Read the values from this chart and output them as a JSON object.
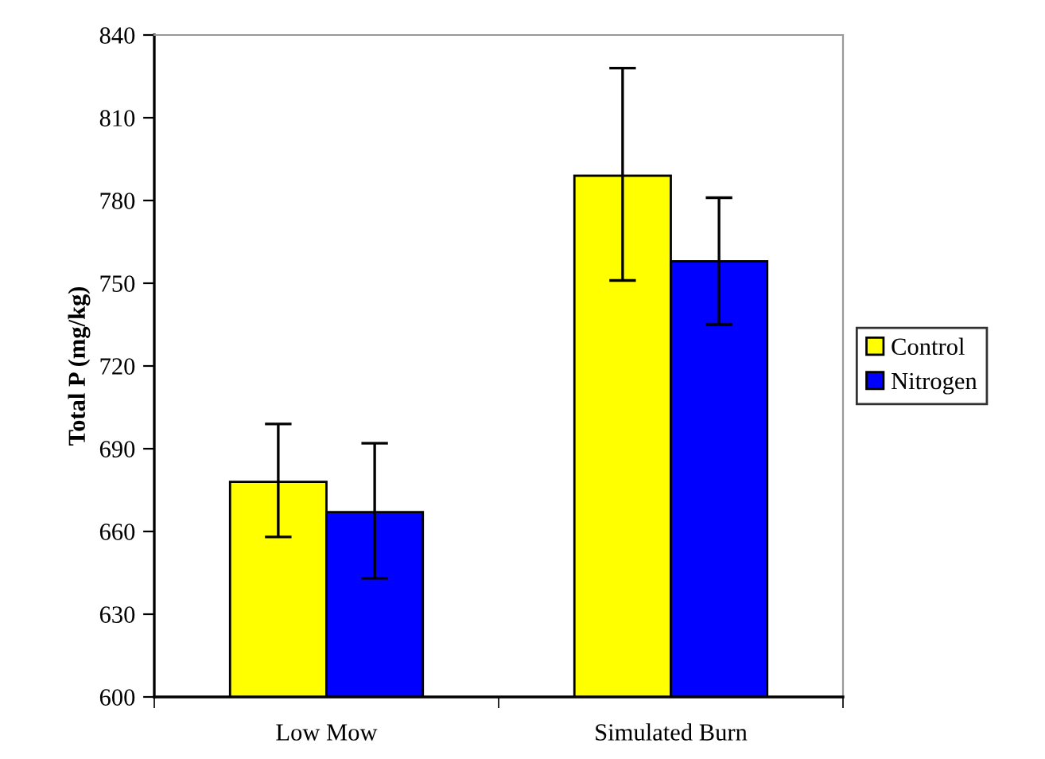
{
  "chart_data": {
    "type": "bar",
    "ylabel": "Total P (mg/kg)",
    "categories": [
      "Low Mow",
      "Simulated Burn"
    ],
    "series": [
      {
        "name": "Control",
        "color": "#ffff00",
        "values": [
          678,
          789
        ],
        "errors": [
          [
            658,
            699
          ],
          [
            751,
            828
          ]
        ]
      },
      {
        "name": "Nitrogen",
        "color": "#0000ff",
        "values": [
          667,
          758
        ],
        "errors": [
          [
            643,
            692
          ],
          [
            735,
            781
          ]
        ]
      }
    ],
    "ylim": [
      600,
      840
    ],
    "yticks": [
      600,
      630,
      660,
      690,
      720,
      750,
      780,
      810,
      840
    ],
    "grid": false,
    "legend": "right"
  }
}
